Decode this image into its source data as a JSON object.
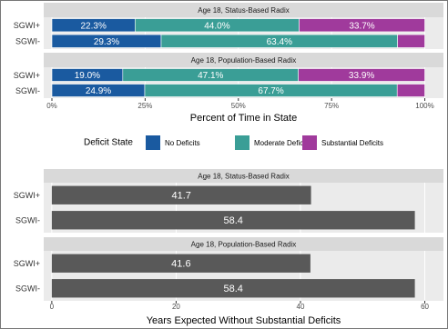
{
  "chart_data": [
    {
      "type": "stacked-bar",
      "xlabel": "Percent of Time in State",
      "xlim": [
        -2.2,
        105
      ],
      "xticks": [
        {
          "value": 0,
          "label": "0%"
        },
        {
          "value": 25,
          "label": "25%"
        },
        {
          "value": 50,
          "label": "50%"
        },
        {
          "value": 75,
          "label": "75%"
        },
        {
          "value": 100,
          "label": "100%"
        }
      ],
      "grid": true,
      "legend_title": "Deficit State",
      "legend_position": "bottom",
      "series": [
        {
          "name": "No Deficits",
          "color": "#1a5aa0"
        },
        {
          "name": "Moderate Deficits",
          "color": "#3a9e96"
        },
        {
          "name": "Substantial Deficits",
          "color": "#a03a9c"
        }
      ],
      "panels": [
        {
          "title": "Age 18, Status-Based Radix",
          "categories": [
            "SGWI+",
            "SGWI-"
          ],
          "series": [
            {
              "values": [
                22.3,
                29.3
              ],
              "value_labels": [
                "22.3%",
                "29.3%"
              ]
            },
            {
              "values": [
                44.0,
                63.4
              ],
              "value_labels": [
                "44.0%",
                "63.4%"
              ]
            },
            {
              "values": [
                33.7,
                7.3
              ],
              "value_labels": [
                "33.7%",
                null
              ]
            }
          ]
        },
        {
          "title": "Age 18, Population-Based Radix",
          "categories": [
            "SGWI+",
            "SGWI-"
          ],
          "series": [
            {
              "values": [
                19.0,
                24.9
              ],
              "value_labels": [
                "19.0%",
                "24.9%"
              ]
            },
            {
              "values": [
                47.1,
                67.7
              ],
              "value_labels": [
                "47.1%",
                "67.7%"
              ]
            },
            {
              "values": [
                33.9,
                7.4
              ],
              "value_labels": [
                "33.9%",
                null
              ]
            }
          ]
        }
      ]
    },
    {
      "type": "bar",
      "xlabel": "Years Expected Without Substantial Deficits",
      "xlim": [
        -1.3,
        63
      ],
      "xticks": [
        0,
        20,
        40,
        60
      ],
      "grid": true,
      "color": "#595959",
      "panels": [
        {
          "title": "Age 18, Status-Based Radix",
          "categories": [
            "SGWI+",
            "SGWI-"
          ],
          "values": [
            41.7,
            58.4
          ]
        },
        {
          "title": "Age 18, Population-Based Radix",
          "categories": [
            "SGWI+",
            "SGWI-"
          ],
          "values": [
            41.6,
            58.4
          ]
        }
      ]
    }
  ]
}
